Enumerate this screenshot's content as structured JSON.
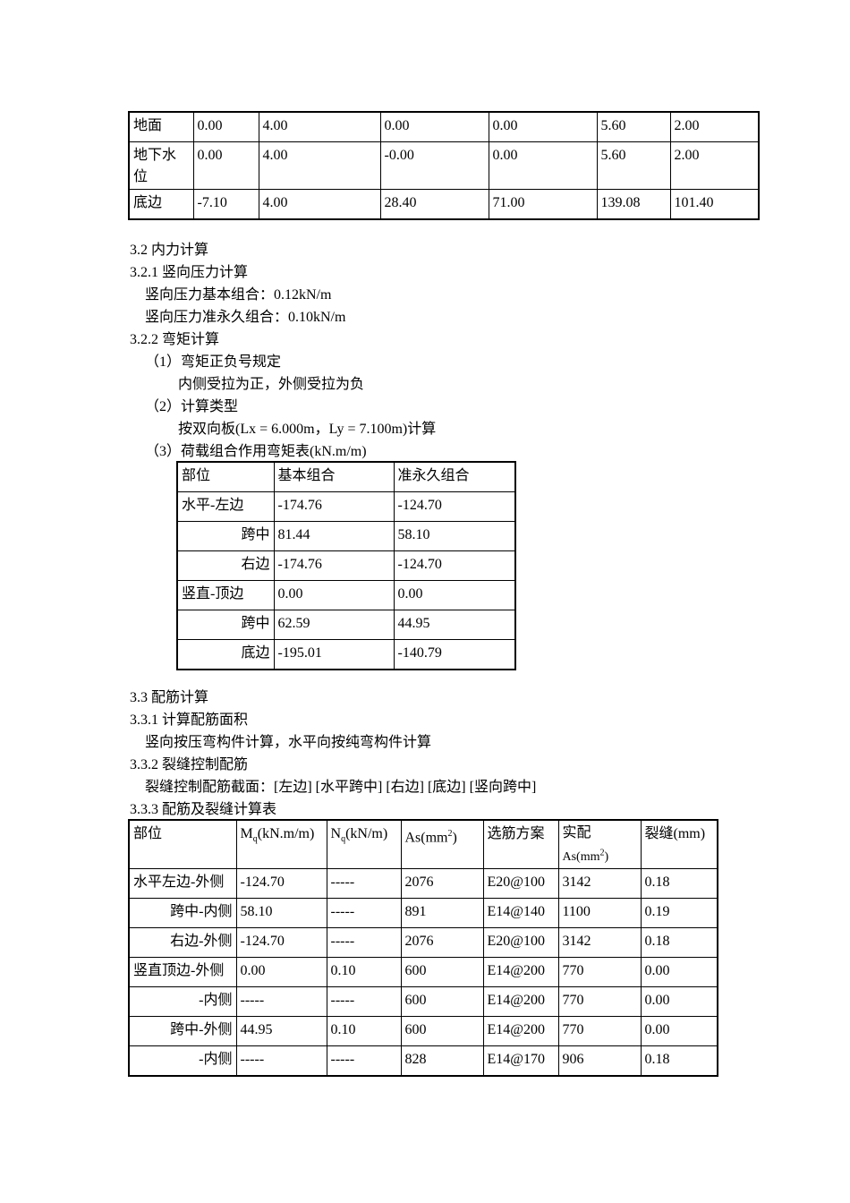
{
  "table1": {
    "rows": [
      [
        "地面",
        "0.00",
        "4.00",
        "0.00",
        "0.00",
        "5.60",
        "2.00"
      ],
      [
        "地下水位",
        "0.00",
        "4.00",
        "-0.00",
        "0.00",
        "5.60",
        "2.00"
      ],
      [
        "底边",
        "-7.10",
        "4.00",
        "28.40",
        "71.00",
        "139.08",
        "101.40"
      ]
    ]
  },
  "sec32": {
    "title": "3.2 内力计算",
    "s321": "3.2.1 竖向压力计算",
    "basic": "竖向压力基本组合：0.12kN/m",
    "quasi": "竖向压力准永久组合：0.10kN/m",
    "s322": "3.2.2 弯矩计算",
    "item1": "（1）弯矩正负号规定",
    "item1_text": "内侧受拉为正，外侧受拉为负",
    "item2": "（2）计算类型",
    "item2_text": "按双向板(Lx = 6.000m，Ly = 7.100m)计算",
    "item3": "（3）荷载组合作用弯矩表(kN.m/m)"
  },
  "table2": {
    "header": [
      "部位",
      "基本组合",
      "准永久组合"
    ],
    "rows": [
      [
        "水平-左边",
        "-174.76",
        "-124.70"
      ],
      [
        "跨中",
        "81.44",
        "58.10"
      ],
      [
        "右边",
        "-174.76",
        "-124.70"
      ],
      [
        "竖直-顶边",
        "0.00",
        "0.00"
      ],
      [
        "跨中",
        "62.59",
        "44.95"
      ],
      [
        "底边",
        "-195.01",
        "-140.79"
      ]
    ],
    "right_aligned_first": [
      false,
      true,
      true,
      false,
      true,
      true
    ]
  },
  "sec33": {
    "title": "3.3 配筋计算",
    "s331": "3.3.1 计算配筋面积",
    "s331_text": "竖向按压弯构件计算，水平向按纯弯构件计算",
    "s332": "3.3.2 裂缝控制配筋",
    "s332_text": "裂缝控制配筋截面：[左边] [水平跨中] [右边] [底边] [竖向跨中]",
    "s333": "3.3.3 配筋及裂缝计算表"
  },
  "table3": {
    "header": {
      "part": "部位",
      "mq": "M",
      "mq_sub": "q",
      "mq_unit": "(kN.m/m)",
      "nq": "N",
      "nq_sub": "q",
      "nq_unit": "(kN/m)",
      "as": "As(mm",
      "as_sup": "2",
      "as_close": ")",
      "scheme": "选筋方案",
      "actual": "实配",
      "actual2": "As(mm",
      "actual_sup": "2",
      "actual_close": ")",
      "crack": "裂缝(mm)"
    },
    "rows": [
      [
        "水平左边-外侧",
        "-124.70",
        "-----",
        "2076",
        "E20@100",
        "3142",
        "0.18"
      ],
      [
        "跨中-内侧",
        "58.10",
        "-----",
        "891",
        "E14@140",
        "1100",
        "0.19"
      ],
      [
        "右边-外侧",
        "-124.70",
        "-----",
        "2076",
        "E20@100",
        "3142",
        "0.18"
      ],
      [
        "竖直顶边-外侧",
        "0.00",
        "0.10",
        "600",
        "E14@200",
        "770",
        "0.00"
      ],
      [
        "-内侧",
        "-----",
        "-----",
        "600",
        "E14@200",
        "770",
        "0.00"
      ],
      [
        "跨中-外侧",
        "44.95",
        "0.10",
        "600",
        "E14@200",
        "770",
        "0.00"
      ],
      [
        "-内侧",
        "-----",
        "-----",
        "828",
        "E14@170",
        "906",
        "0.18"
      ]
    ],
    "right_aligned_first": [
      false,
      true,
      true,
      false,
      true,
      true,
      true
    ]
  }
}
